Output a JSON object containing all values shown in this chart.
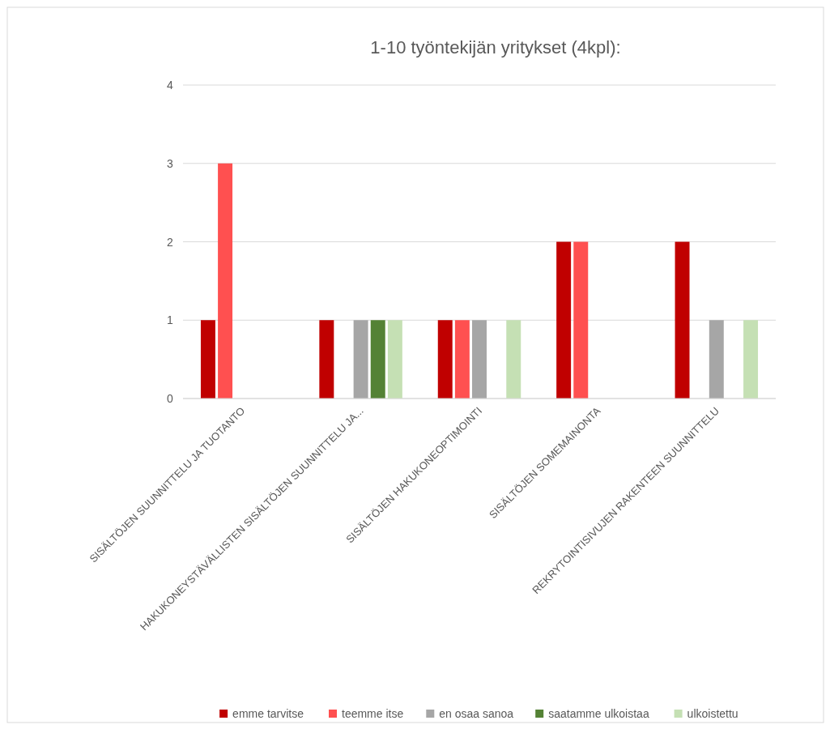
{
  "chart_data": {
    "type": "bar",
    "title": "1-10 työntekijän yritykset (4kpl):",
    "categories": [
      "SISÄLTÖJEN SUUNNITTELU JA TUOTANTO",
      "HAKUKONEYSTÄVÄLLISTEN SISÄLTÖJEN SUUNNITTELU JA...",
      "SISÄLTÖJEN HAKUKONEOPTIMOINTI",
      "SISÄLTÖJEN SOMEMAINONTA",
      "REKRYTOINTISIVUJEN RAKENTEEN SUUNNITTELU"
    ],
    "series": [
      {
        "name": "emme tarvitse",
        "color": "#c00000",
        "values": [
          1,
          1,
          1,
          2,
          2
        ]
      },
      {
        "name": "teemme itse",
        "color": "#ff5050",
        "values": [
          3,
          0,
          1,
          2,
          0
        ]
      },
      {
        "name": "en osaa sanoa",
        "color": "#a6a6a6",
        "values": [
          0,
          1,
          1,
          0,
          1
        ]
      },
      {
        "name": "saatamme ulkoistaa",
        "color": "#548235",
        "values": [
          0,
          1,
          0,
          0,
          0
        ]
      },
      {
        "name": "ulkoistettu",
        "color": "#c5e0b4",
        "values": [
          0,
          1,
          1,
          0,
          1
        ]
      }
    ],
    "ylim": [
      0,
      4
    ],
    "yticks": [
      0,
      1,
      2,
      3,
      4
    ],
    "grid": "y",
    "legend": "bottom"
  }
}
